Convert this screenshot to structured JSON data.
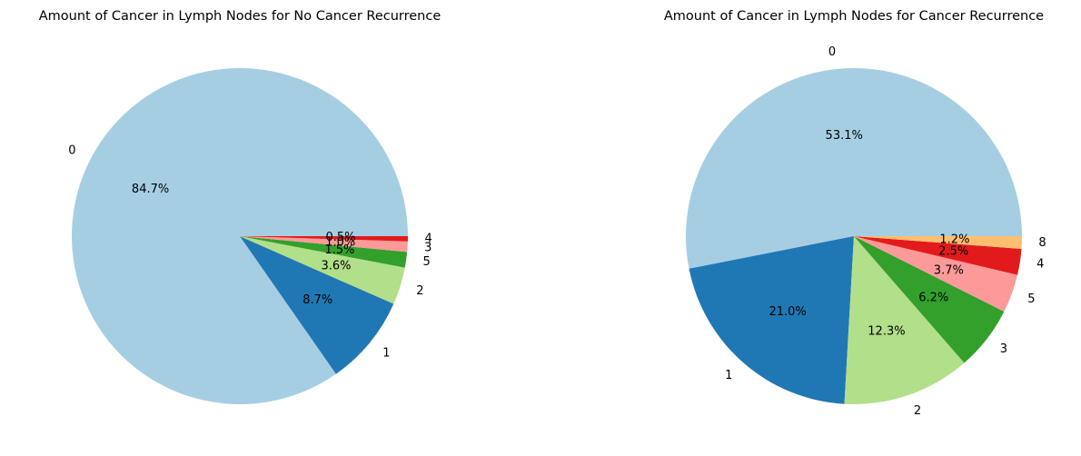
{
  "chart_data": [
    {
      "type": "pie",
      "title": "Amount of Cancer in Lymph Nodes for No Cancer Recurrence",
      "categories": [
        "0",
        "1",
        "2",
        "5",
        "3",
        "4"
      ],
      "values": [
        84.7,
        8.7,
        3.6,
        1.5,
        1.0,
        0.5
      ],
      "labels": [
        "84.7%",
        "8.7%",
        "3.6%",
        "1.5%",
        "1.0%",
        "0.5%"
      ],
      "colors": [
        "#a6cee3",
        "#1f78b4",
        "#b2df8a",
        "#33a02c",
        "#fb9a99",
        "#e31a1c"
      ],
      "start_angle_deg": 0,
      "direction": "counterclockwise",
      "legend": "none"
    },
    {
      "type": "pie",
      "title": "Amount of Cancer in Lymph Nodes for Cancer Recurrence",
      "categories": [
        "0",
        "1",
        "2",
        "3",
        "5",
        "4",
        "8"
      ],
      "values": [
        53.1,
        21.0,
        12.3,
        6.2,
        3.7,
        2.5,
        1.2
      ],
      "labels": [
        "53.1%",
        "21.0%",
        "12.3%",
        "6.2%",
        "3.7%",
        "2.5%",
        "1.2%"
      ],
      "colors": [
        "#a6cee3",
        "#1f78b4",
        "#b2df8a",
        "#33a02c",
        "#fb9a99",
        "#e31a1c",
        "#fdbf6f"
      ],
      "start_angle_deg": 0,
      "direction": "counterclockwise",
      "legend": "none"
    }
  ]
}
